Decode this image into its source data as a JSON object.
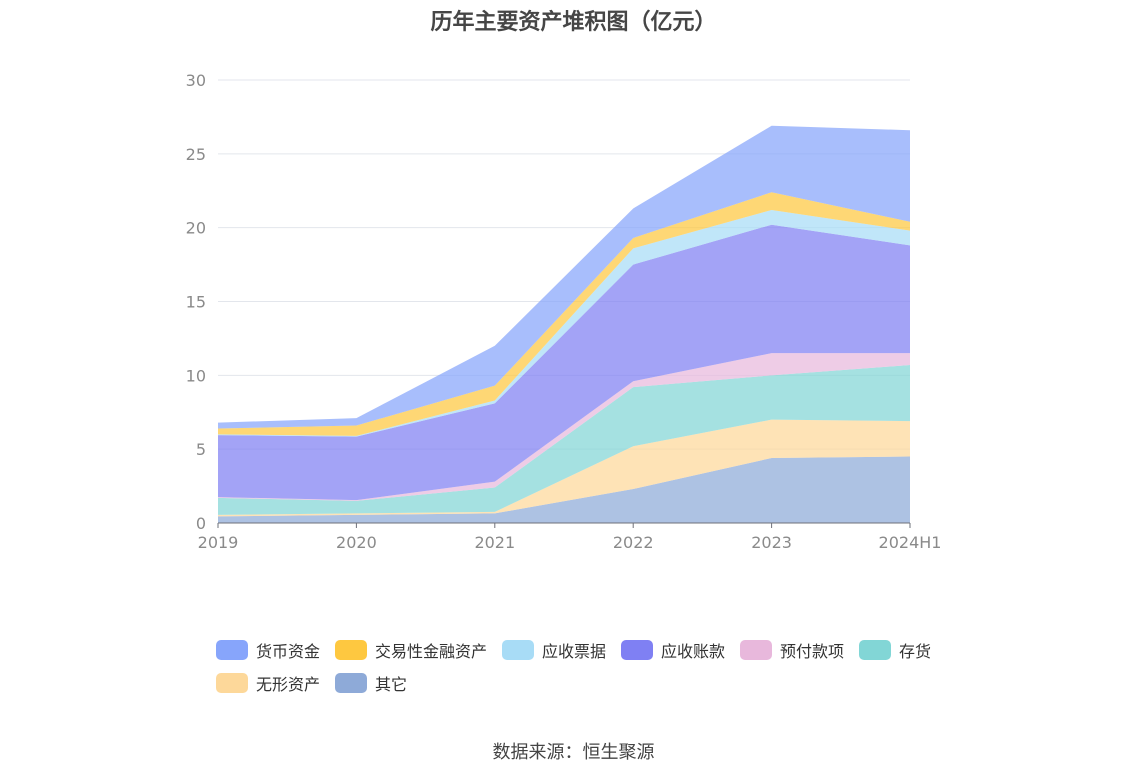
{
  "chart_data": {
    "type": "area",
    "title": "历年主要资产堆积图（亿元）",
    "categories": [
      "2019",
      "2020",
      "2021",
      "2022",
      "2023",
      "2024H1"
    ],
    "ylim": [
      0,
      30
    ],
    "yticks": [
      0,
      5,
      10,
      15,
      20,
      25,
      30
    ],
    "stacked": true,
    "grid": true,
    "legend_position": "bottom",
    "series": [
      {
        "name": "其它",
        "color": "#8eaad8",
        "values": [
          0.45,
          0.55,
          0.65,
          2.3,
          4.4,
          4.5
        ]
      },
      {
        "name": "无形资产",
        "color": "#fdd89a",
        "values": [
          0.1,
          0.1,
          0.1,
          2.9,
          2.6,
          2.4
        ]
      },
      {
        "name": "存货",
        "color": "#82d6d6",
        "values": [
          1.15,
          0.85,
          1.65,
          4.0,
          3.0,
          3.8
        ]
      },
      {
        "name": "预付款项",
        "color": "#e8b8dc",
        "values": [
          0.05,
          0.05,
          0.4,
          0.4,
          1.5,
          0.8
        ]
      },
      {
        "name": "应收账款",
        "color": "#7f80f3",
        "values": [
          4.2,
          4.3,
          5.3,
          7.9,
          8.7,
          7.3
        ]
      },
      {
        "name": "应收票据",
        "color": "#a8dcf6",
        "values": [
          0.05,
          0.05,
          0.2,
          1.1,
          1.0,
          1.0
        ]
      },
      {
        "name": "交易性金融资产",
        "color": "#fec840",
        "values": [
          0.4,
          0.7,
          1.0,
          0.7,
          1.2,
          0.6
        ]
      },
      {
        "name": "货币资金",
        "color": "#87a5fb",
        "values": [
          0.4,
          0.5,
          2.7,
          2.0,
          4.5,
          6.2
        ]
      }
    ]
  },
  "legend_order": [
    "货币资金",
    "交易性金融资产",
    "应收票据",
    "应收账款",
    "预付款项",
    "存货",
    "无形资产",
    "其它"
  ],
  "legend": [
    {
      "name": "货币资金",
      "color": "#87a5fb"
    },
    {
      "name": "交易性金融资产",
      "color": "#fec840"
    },
    {
      "name": "应收票据",
      "color": "#a8dcf6"
    },
    {
      "name": "应收账款",
      "color": "#7f80f3"
    },
    {
      "name": "预付款项",
      "color": "#e8b8dc"
    },
    {
      "name": "存货",
      "color": "#82d6d6"
    },
    {
      "name": "无形资产",
      "color": "#fdd89a"
    },
    {
      "name": "其它",
      "color": "#8eaad8"
    }
  ],
  "source": "数据来源：恒生聚源"
}
